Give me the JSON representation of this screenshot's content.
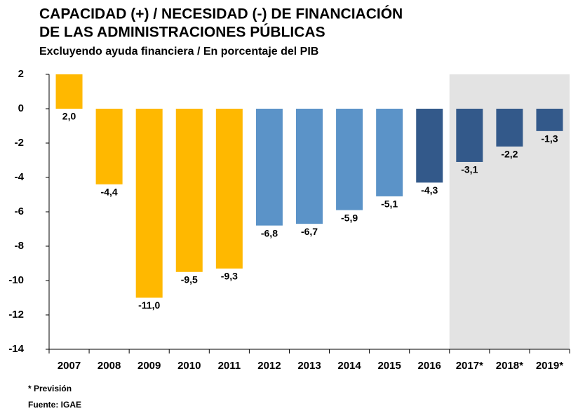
{
  "chart_data": {
    "type": "bar",
    "title": [
      "CAPACIDAD (+) / NECESIDAD (-) DE FINANCIACIÓN",
      "DE LAS ADMINISTRACIONES PÚBLICAS"
    ],
    "subtitle": "Excluyendo ayuda financiera / En porcentaje del PIB",
    "categories": [
      "2007",
      "2008",
      "2009",
      "2010",
      "2011",
      "2012",
      "2013",
      "2014",
      "2015",
      "2016",
      "2017*",
      "2018*",
      "2019*"
    ],
    "values": [
      2.0,
      -4.4,
      -11.0,
      -9.5,
      -9.3,
      -6.8,
      -6.7,
      -5.9,
      -5.1,
      -4.3,
      -3.1,
      -2.2,
      -1.3
    ],
    "value_labels": [
      "2,0",
      "-4,4",
      "-11,0",
      "-9,5",
      "-9,3",
      "-6,8",
      "-6,7",
      "-5,9",
      "-5,1",
      "-4,3",
      "-3,1",
      "-2,2",
      "-1,3"
    ],
    "colors": [
      "#FFB800",
      "#FFB800",
      "#FFB800",
      "#FFB800",
      "#FFB800",
      "#5B93C8",
      "#5B93C8",
      "#5B93C8",
      "#5B93C8",
      "#33598A",
      "#33598A",
      "#33598A",
      "#33598A"
    ],
    "ylim": [
      -14,
      2
    ],
    "yticks": [
      2,
      0,
      -2,
      -4,
      -6,
      -8,
      -10,
      -12,
      -14
    ],
    "notes": [
      "* Previsión",
      "Fuente: IGAE"
    ]
  }
}
